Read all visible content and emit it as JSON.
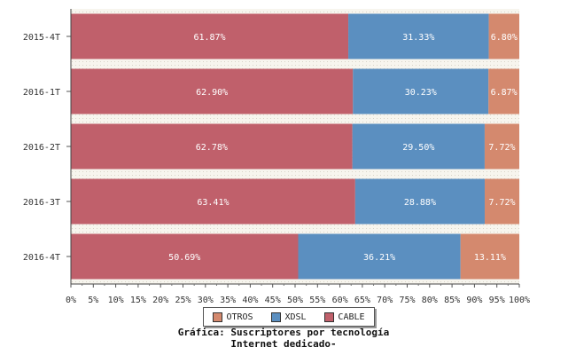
{
  "chart_data": {
    "type": "bar",
    "orientation": "horizontal",
    "stacked": true,
    "categories": [
      "2015-4T",
      "2016-1T",
      "2016-2T",
      "2016-3T",
      "2016-4T"
    ],
    "series": [
      {
        "name": "CABLE",
        "color": "#c0606b",
        "values": [
          61.87,
          62.9,
          62.78,
          63.41,
          50.69
        ],
        "labels": [
          "61.87%",
          "62.90%",
          "62.78%",
          "63.41%",
          "50.69%"
        ]
      },
      {
        "name": "XDSL",
        "color": "#5b8fc0",
        "values": [
          31.33,
          30.23,
          29.5,
          28.88,
          36.21
        ],
        "labels": [
          "31.33%",
          "30.23%",
          "29.50%",
          "28.88%",
          "36.21%"
        ]
      },
      {
        "name": "OTROS",
        "color": "#d4896e",
        "values": [
          6.8,
          6.87,
          7.72,
          7.72,
          13.11
        ],
        "labels": [
          "6.80%",
          "6.87%",
          "7.72%",
          "7.72%",
          "13.11%"
        ]
      }
    ],
    "xlim": [
      0,
      100
    ],
    "xticks": [
      "0%",
      "5%",
      "10%",
      "15%",
      "20%",
      "25%",
      "30%",
      "35%",
      "40%",
      "45%",
      "50%",
      "55%",
      "60%",
      "65%",
      "70%",
      "75%",
      "80%",
      "85%",
      "90%",
      "95%",
      "100%"
    ],
    "legend": {
      "placement": "bottom",
      "entries": [
        {
          "name": "OTROS",
          "color": "#d4896e"
        },
        {
          "name": "XDSL",
          "color": "#5b8fc0"
        },
        {
          "name": "CABLE",
          "color": "#c0606b"
        }
      ]
    },
    "caption_line1": "Gráfica: Suscriptores por tecnología",
    "caption_line2": "Internet dedicado-"
  }
}
